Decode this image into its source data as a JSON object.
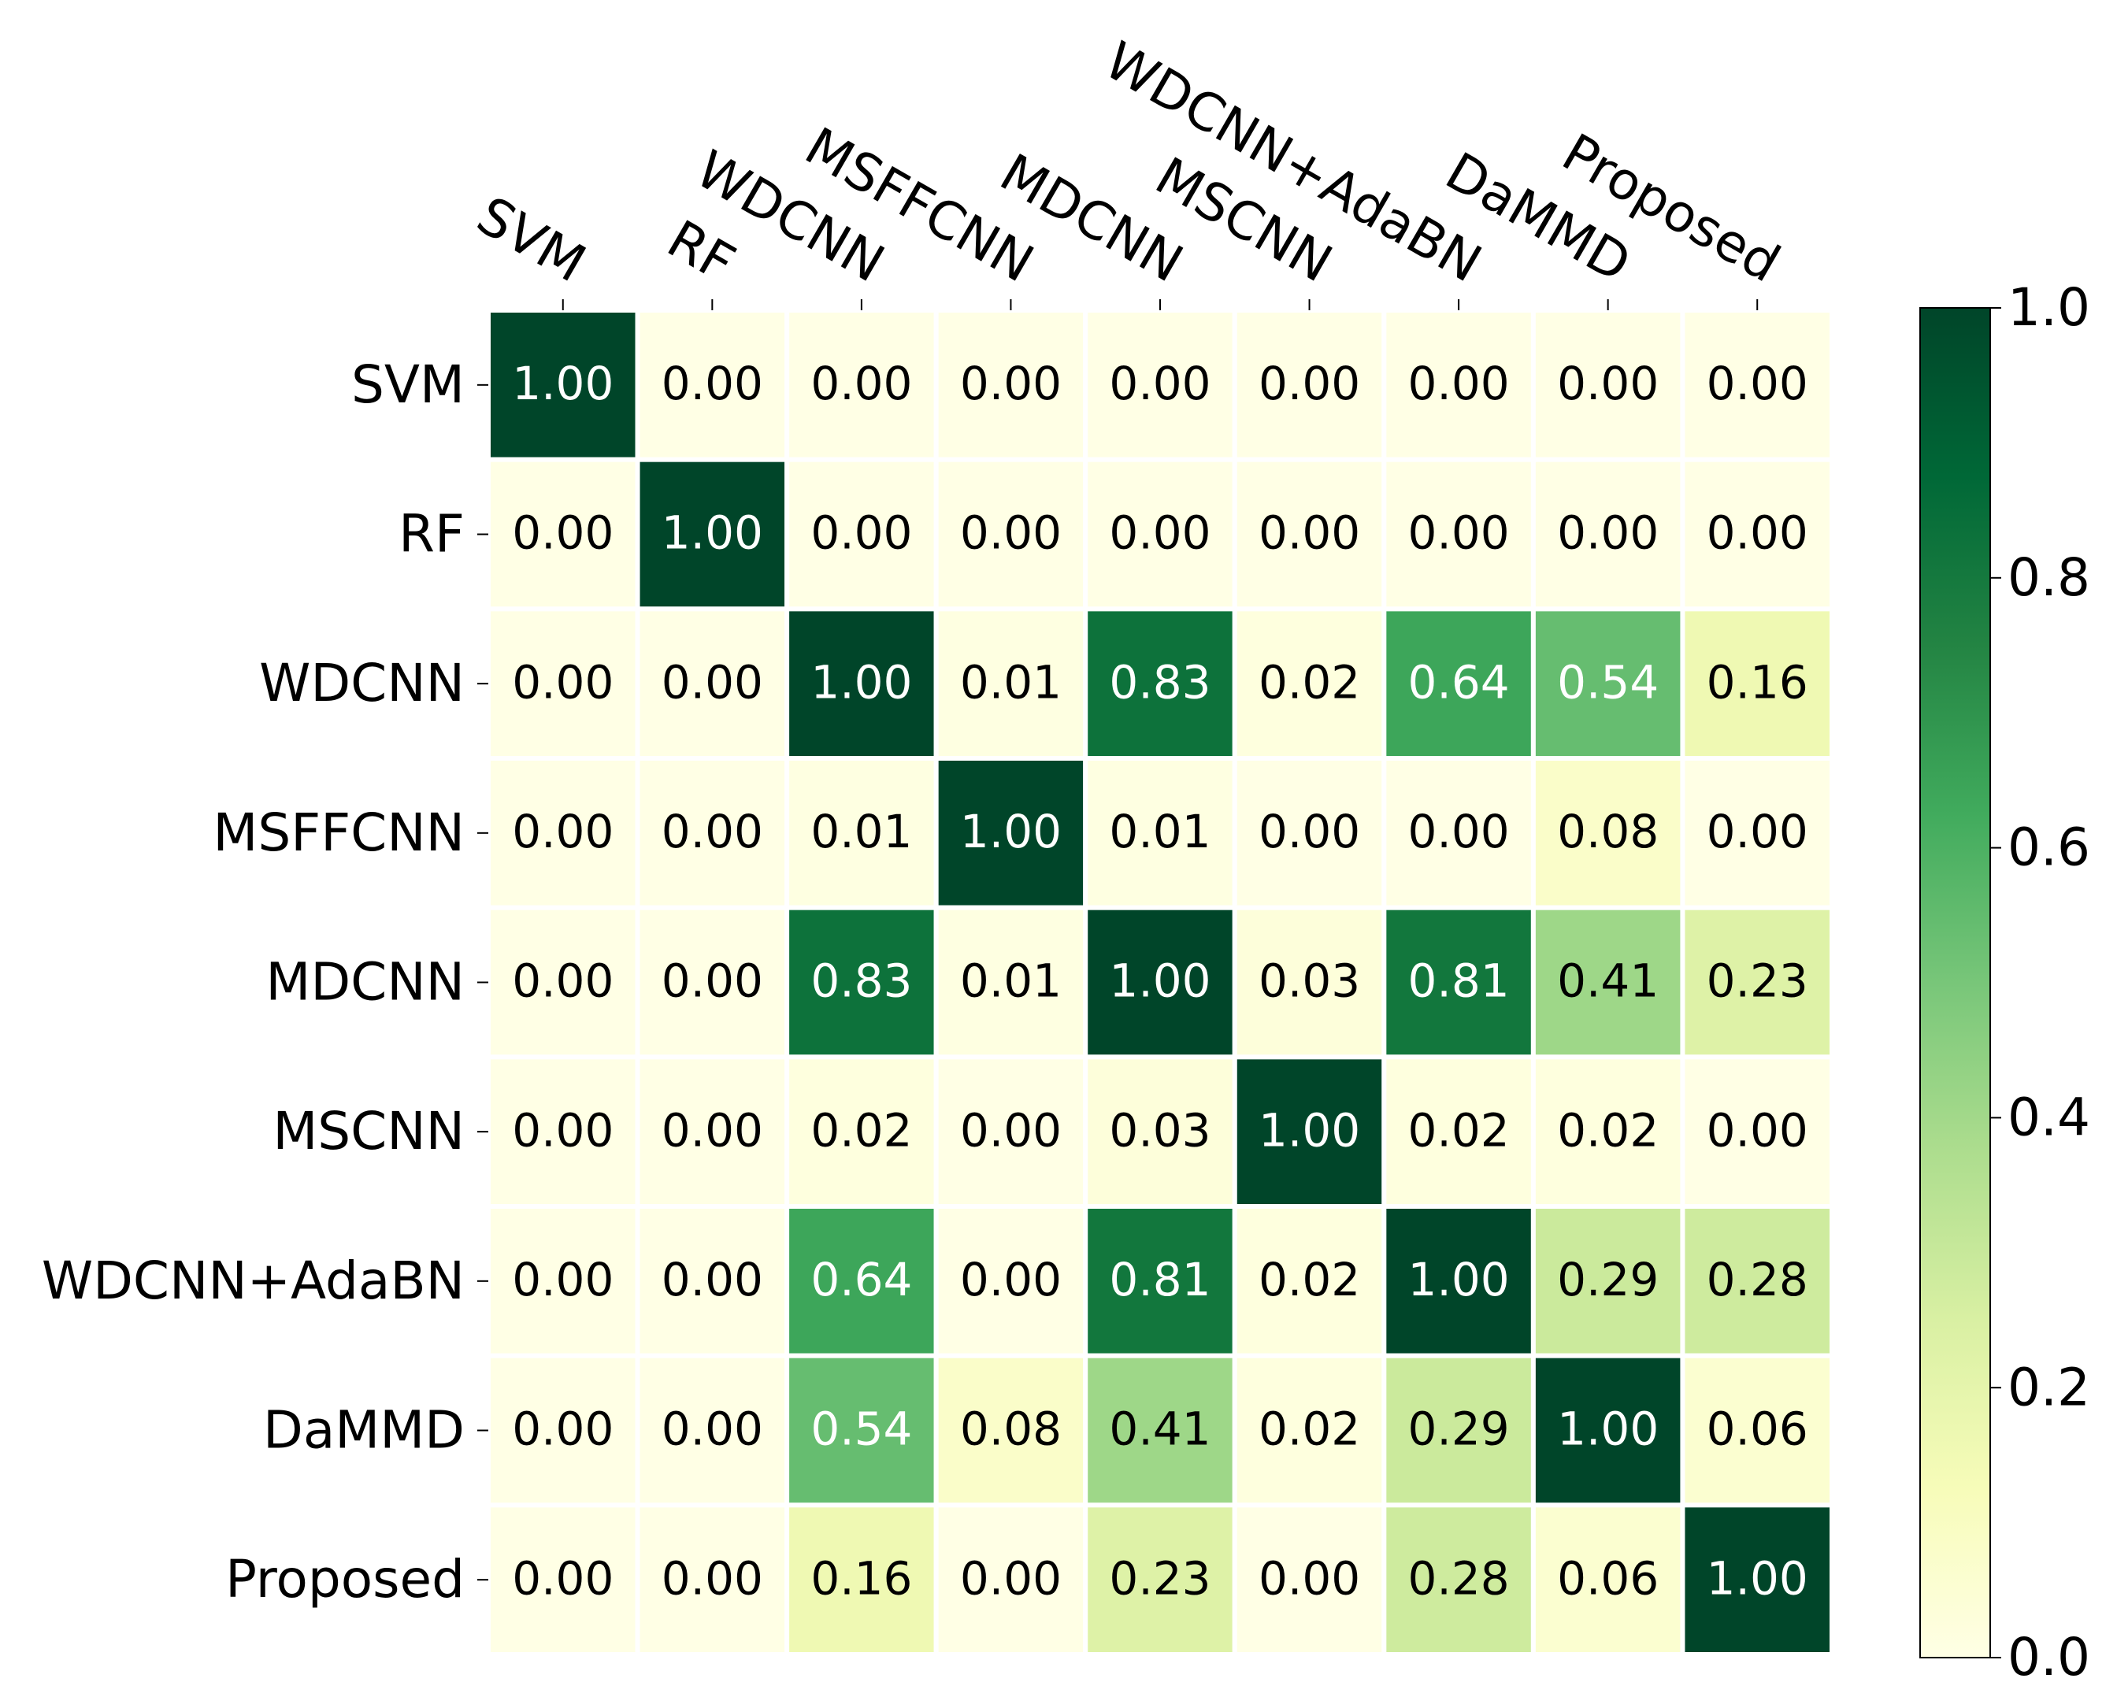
{
  "chart_data": {
    "type": "heatmap",
    "x_categories": [
      "SVM",
      "RF",
      "WDCNN",
      "MSFFCNN",
      "MDCNN",
      "MSCNN",
      "WDCNN+AdaBN",
      "DaMMD",
      "Proposed"
    ],
    "y_categories": [
      "SVM",
      "RF",
      "WDCNN",
      "MSFFCNN",
      "MDCNN",
      "MSCNN",
      "WDCNN+AdaBN",
      "DaMMD",
      "Proposed"
    ],
    "values": [
      [
        1,
        0,
        0,
        0,
        0,
        0,
        0,
        0,
        0
      ],
      [
        0,
        1,
        0,
        0,
        0,
        0,
        0,
        0,
        0
      ],
      [
        0,
        0,
        1,
        0.01,
        0.83,
        0.02,
        0.64,
        0.54,
        0.16
      ],
      [
        0,
        0,
        0.01,
        1,
        0.01,
        0,
        0,
        0.08,
        0
      ],
      [
        0,
        0,
        0.83,
        0.01,
        1,
        0.03,
        0.81,
        0.41,
        0.23
      ],
      [
        0,
        0,
        0.02,
        0,
        0.03,
        1,
        0.02,
        0.02,
        0
      ],
      [
        0,
        0,
        0.64,
        0,
        0.81,
        0.02,
        1,
        0.29,
        0.28
      ],
      [
        0,
        0,
        0.54,
        0.08,
        0.41,
        0.02,
        0.29,
        1,
        0.06
      ],
      [
        0,
        0,
        0.16,
        0,
        0.23,
        0,
        0.28,
        0.06,
        1
      ]
    ],
    "value_labels": [
      [
        "1.00",
        "0.00",
        "0.00",
        "0.00",
        "0.00",
        "0.00",
        "0.00",
        "0.00",
        "0.00"
      ],
      [
        "0.00",
        "1.00",
        "0.00",
        "0.00",
        "0.00",
        "0.00",
        "0.00",
        "0.00",
        "0.00"
      ],
      [
        "0.00",
        "0.00",
        "1.00",
        "0.01",
        "0.83",
        "0.02",
        "0.64",
        "0.54",
        "0.16"
      ],
      [
        "0.00",
        "0.00",
        "0.01",
        "1.00",
        "0.01",
        "0.00",
        "0.00",
        "0.08",
        "0.00"
      ],
      [
        "0.00",
        "0.00",
        "0.83",
        "0.01",
        "1.00",
        "0.03",
        "0.81",
        "0.41",
        "0.23"
      ],
      [
        "0.00",
        "0.00",
        "0.02",
        "0.00",
        "0.03",
        "1.00",
        "0.02",
        "0.02",
        "0.00"
      ],
      [
        "0.00",
        "0.00",
        "0.64",
        "0.00",
        "0.81",
        "0.02",
        "1.00",
        "0.29",
        "0.28"
      ],
      [
        "0.00",
        "0.00",
        "0.54",
        "0.08",
        "0.41",
        "0.02",
        "0.29",
        "1.00",
        "0.06"
      ],
      [
        "0.00",
        "0.00",
        "0.16",
        "0.00",
        "0.23",
        "0.00",
        "0.28",
        "0.06",
        "1.00"
      ]
    ],
    "colormap": "YlGn",
    "clim": [
      0,
      1
    ],
    "cticks": [
      {
        "value": 0,
        "label": "0.0"
      },
      {
        "value": 0.2,
        "label": "0.2"
      },
      {
        "value": 0.4,
        "label": "0.4"
      },
      {
        "value": 0.6,
        "label": "0.6"
      },
      {
        "value": 0.8,
        "label": "0.8"
      },
      {
        "value": 1,
        "label": "1.0"
      }
    ]
  }
}
